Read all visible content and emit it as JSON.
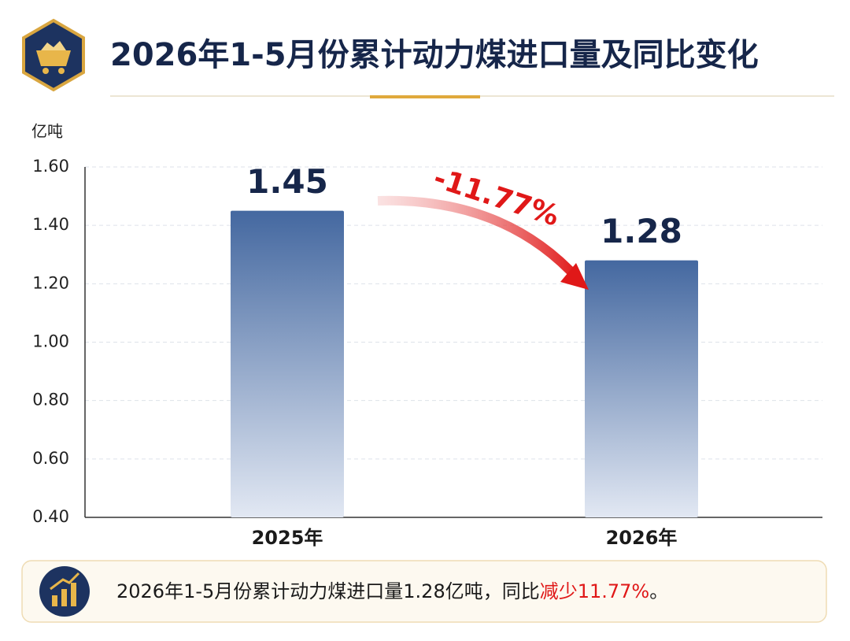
{
  "chart_data": {
    "type": "bar",
    "title": "2026年1-5月份累计动力煤进口量及同比变化",
    "y_label": "亿吨",
    "categories": [
      "2025年",
      "2026年"
    ],
    "values": [
      1.45,
      1.28
    ],
    "color": "#4468a0",
    "ylim": [
      0.4,
      1.6
    ],
    "yticks": [
      {
        "value": 0.4,
        "label": "0.40"
      },
      {
        "value": 0.6,
        "label": "0.60"
      },
      {
        "value": 0.8,
        "label": "0.80"
      },
      {
        "value": 1.0,
        "label": "1.00"
      },
      {
        "value": 1.2,
        "label": "1.20"
      },
      {
        "value": 1.4,
        "label": "1.40"
      },
      {
        "value": 1.6,
        "label": "1.60"
      }
    ],
    "grid": true,
    "annotation": "-11.77%",
    "note": [
      "2026年1-5月份累计动力煤进口量1.28亿吨，同比",
      "减少11.77%",
      "。"
    ]
  }
}
